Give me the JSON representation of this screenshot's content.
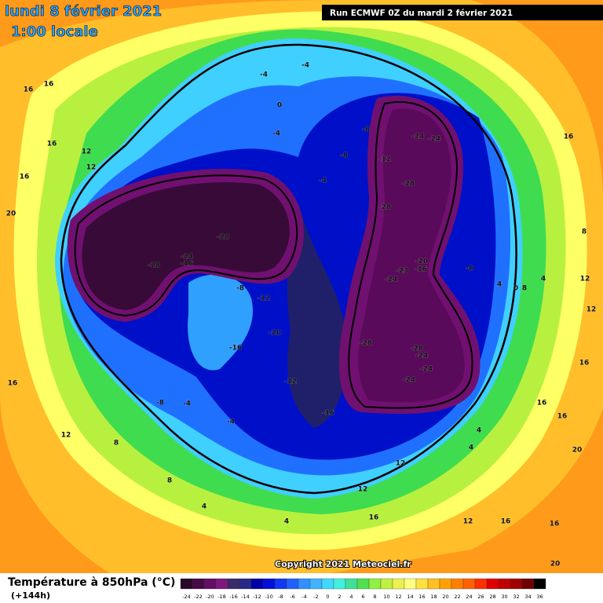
{
  "header": {
    "date": "lundi 8 février 2021",
    "time": "1:00 locale",
    "run": "Run ECMWF 0Z du mardi 2 février 2021"
  },
  "copyright": "Copyright 2021 Meteociel.fr",
  "footer": {
    "title": "Température à 850hPa (°C)",
    "lead": "(+144h)"
  },
  "legend": {
    "labels": [
      -24,
      -22,
      -20,
      -18,
      -16,
      -14,
      -12,
      -10,
      -8,
      -6,
      -4,
      -2,
      0,
      2,
      4,
      6,
      8,
      10,
      12,
      14,
      16,
      18,
      20,
      22,
      24,
      26,
      28,
      30,
      32,
      34,
      36
    ],
    "colors": [
      "#2a0828",
      "#460a46",
      "#640e64",
      "#7e187e",
      "#3a2a6a",
      "#28288a",
      "#0000a8",
      "#0010d8",
      "#1038f0",
      "#2060ff",
      "#3090ff",
      "#40b4ff",
      "#40d8ff",
      "#40f0e0",
      "#40e098",
      "#50e050",
      "#90f040",
      "#c0f040",
      "#eef050",
      "#ffff80",
      "#ffe040",
      "#ffc020",
      "#ffa000",
      "#ff8000",
      "#ff6000",
      "#ff3000",
      "#e00000",
      "#c00000",
      "#a00000",
      "#700000",
      "#000000"
    ]
  },
  "map": {
    "contour_labels": [
      -28,
      -28,
      -24,
      -16,
      -8,
      -12,
      -20,
      -16,
      -12,
      -16,
      -12,
      -8,
      -8,
      -24,
      -24,
      -28,
      -28,
      -20,
      -23,
      -16,
      -24,
      -28,
      -28,
      -24,
      -24,
      -24,
      -8,
      -4,
      -4,
      0,
      -4,
      -4,
      -8,
      -4,
      -4,
      16,
      12,
      8,
      8,
      4,
      4,
      16,
      12,
      16,
      16,
      20,
      16,
      12,
      12,
      16,
      16,
      16,
      16,
      16,
      12,
      12,
      16,
      20,
      16,
      8,
      4,
      4,
      12,
      12,
      4,
      0,
      8,
      4,
      20
    ]
  }
}
